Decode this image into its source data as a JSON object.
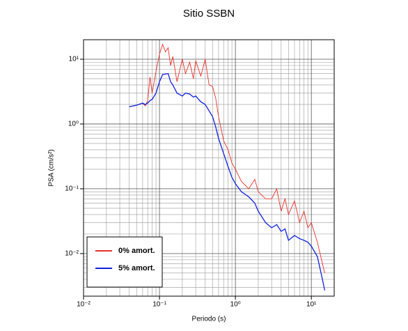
{
  "chart_data": {
    "type": "line",
    "title": "Sitio SSBN",
    "xlabel": "Periodo (s)",
    "ylabel": "PSA (cm/s²)",
    "xscale": "log",
    "yscale": "log",
    "grid": true,
    "legend": "lower left",
    "xlim": [
      0.01,
      20
    ],
    "ylim": [
      0.0022,
      20
    ],
    "xticks": [
      {
        "value": 0.01,
        "label": "10⁻²"
      },
      {
        "value": 0.1,
        "label": "10⁻¹"
      },
      {
        "value": 1,
        "label": "10⁰"
      },
      {
        "value": 10,
        "label": "10¹"
      }
    ],
    "yticks": [
      {
        "value": 0.01,
        "label": "10⁻²"
      },
      {
        "value": 0.1,
        "label": "10⁻¹"
      },
      {
        "value": 1,
        "label": "10⁰"
      },
      {
        "value": 10,
        "label": "10¹"
      }
    ],
    "xminor": [
      0.02,
      0.03,
      0.04,
      0.05,
      0.06,
      0.07,
      0.08,
      0.09,
      0.2,
      0.3,
      0.4,
      0.5,
      0.6,
      0.7,
      0.8,
      0.9,
      2,
      3,
      4,
      5,
      6,
      7,
      8,
      9
    ],
    "yminor": [
      0.003,
      0.004,
      0.005,
      0.006,
      0.007,
      0.008,
      0.009,
      0.02,
      0.03,
      0.04,
      0.05,
      0.06,
      0.07,
      0.08,
      0.09,
      0.2,
      0.3,
      0.4,
      0.5,
      0.6,
      0.7,
      0.8,
      0.9,
      2,
      3,
      4,
      5,
      6,
      7,
      8,
      9
    ],
    "x": [
      0.04,
      0.05,
      0.06,
      0.065,
      0.07,
      0.075,
      0.08,
      0.09,
      0.1,
      0.11,
      0.12,
      0.13,
      0.14,
      0.15,
      0.17,
      0.2,
      0.22,
      0.25,
      0.28,
      0.3,
      0.35,
      0.4,
      0.45,
      0.5,
      0.55,
      0.6,
      0.7,
      0.8,
      0.9,
      1.0,
      1.2,
      1.5,
      1.8,
      2,
      2.5,
      3,
      3.5,
      4,
      4.5,
      5,
      6,
      7,
      8,
      9,
      10,
      12,
      14,
      15
    ],
    "series": [
      {
        "name": "0% amort.",
        "color": "#e8302a",
        "values": [
          1.85,
          1.95,
          2.1,
          1.9,
          2.3,
          5.3,
          3.0,
          6.5,
          12,
          17,
          13,
          15,
          8,
          11,
          4.5,
          10,
          6,
          9,
          5,
          9.5,
          5.5,
          10,
          4,
          3.8,
          2.5,
          1.3,
          0.55,
          0.4,
          0.25,
          0.2,
          0.13,
          0.1,
          0.14,
          0.09,
          0.07,
          0.07,
          0.1,
          0.045,
          0.07,
          0.04,
          0.065,
          0.03,
          0.045,
          0.025,
          0.03,
          0.015,
          0.007,
          0.005
        ]
      },
      {
        "name": "5% amort.",
        "color": "#1020e0",
        "values": [
          1.85,
          1.95,
          2.1,
          2.0,
          2.1,
          2.3,
          2.4,
          3.0,
          4.5,
          5.8,
          5.9,
          6.0,
          4.5,
          4.0,
          3.0,
          2.7,
          3.0,
          2.9,
          2.6,
          2.7,
          2.2,
          2.0,
          1.6,
          1.3,
          0.9,
          0.6,
          0.35,
          0.22,
          0.15,
          0.12,
          0.09,
          0.075,
          0.06,
          0.045,
          0.03,
          0.025,
          0.028,
          0.022,
          0.024,
          0.016,
          0.019,
          0.017,
          0.016,
          0.015,
          0.013,
          0.009,
          0.004,
          0.0027
        ]
      }
    ]
  }
}
